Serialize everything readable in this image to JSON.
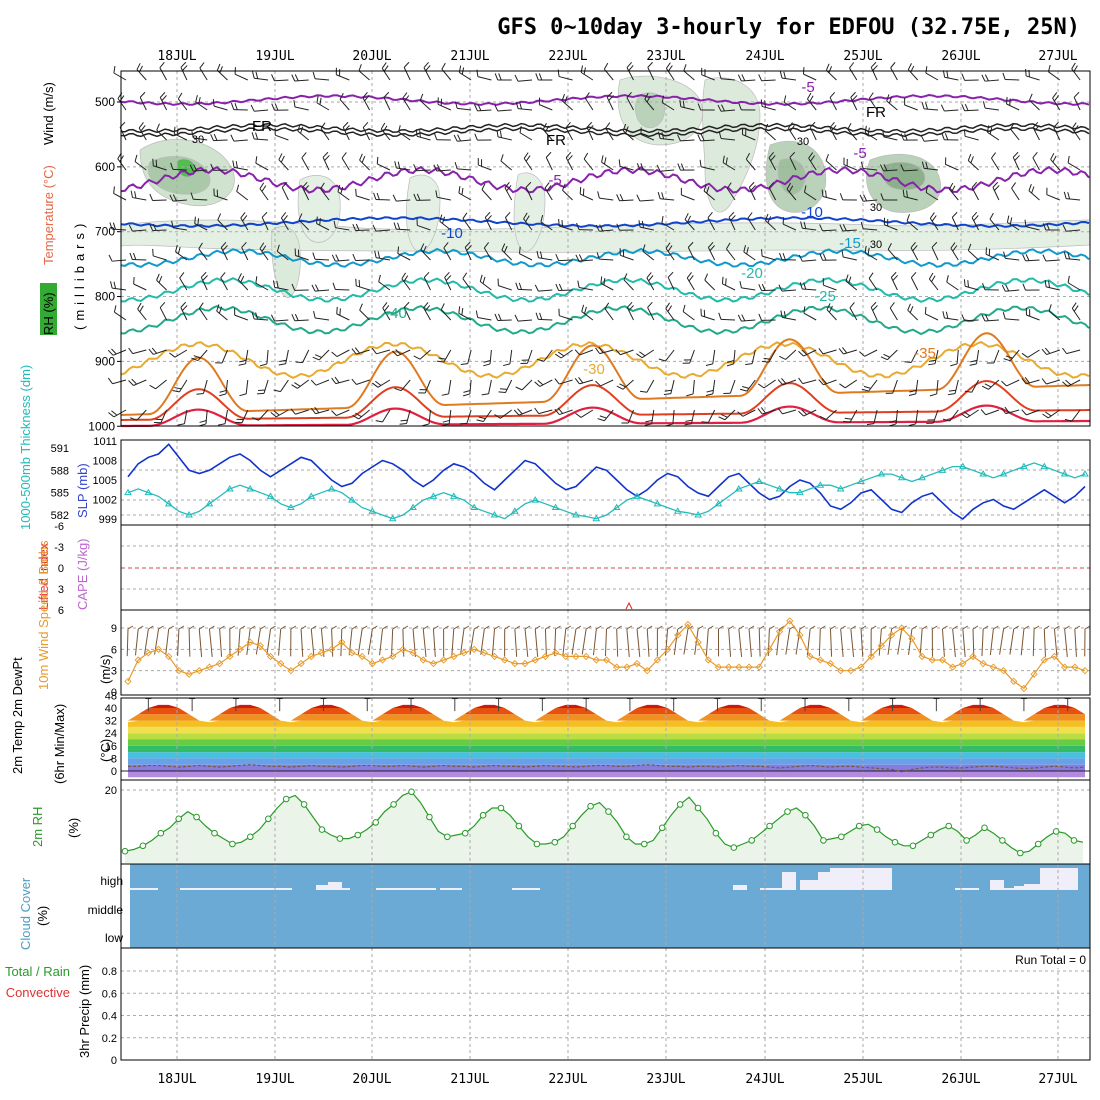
{
  "title": "GFS 0~10day 3-hourly for EDFOU (32.75E, 25N)",
  "run_total": "Run Total = 0",
  "colors": {
    "slp": "#1133cc",
    "thickness": "#22bbbb",
    "wind": "#e89a2a",
    "rh": "#2a9a2a",
    "cloud": "#6aaad4",
    "cloud_high": "#f0eef8"
  },
  "chart_data": [
    {
      "panel": "upper-air",
      "type": "line",
      "dates": [
        "18JUL",
        "19JUL",
        "20JUL",
        "21JUL",
        "22JUL",
        "23JUL",
        "24JUL",
        "25JUL",
        "26JUL",
        "27JUL"
      ],
      "ylabel_parts": [
        "RH (%)",
        "Temperature (°C)",
        "Wind (m/s)",
        "(millibars)"
      ],
      "yticks": [
        "500",
        "600",
        "700",
        "800",
        "900",
        "1000"
      ],
      "contour_labels": [
        "-5",
        "FR",
        "FR",
        "FR",
        "-5",
        "-5",
        "-10",
        "-10",
        "-15",
        "-20",
        "-25",
        "-30",
        "-35",
        "-40",
        "30",
        "30",
        "30",
        "30"
      ]
    },
    {
      "panel": "slp-thickness",
      "type": "line",
      "ylabel_left": "1000-500mb Thickness (dm)",
      "ylabel_right": "SLP (mb)",
      "ylim_thickness": [
        581,
        592
      ],
      "ylim_slp": [
        997,
        1011
      ],
      "yticks_thickness": [
        "591",
        "588",
        "585",
        "582"
      ],
      "yticks_slp": [
        "1011",
        "1008",
        "1005",
        "1002",
        "999"
      ],
      "series": [
        {
          "name": "SLP (mb)",
          "values": [
            1005.5,
            1007.5,
            1008.5,
            1009,
            1010.5,
            1008.5,
            1006.5,
            1006,
            1006.5,
            1007.5,
            1008.5,
            1009,
            1008,
            1006.5,
            1005.5,
            1006.5,
            1007.5,
            1008.5,
            1008,
            1006.5,
            1005,
            1004,
            1004.5,
            1006,
            1007,
            1008,
            1007.5,
            1006.5,
            1005,
            1004,
            1005,
            1006.5,
            1007.5,
            1007,
            1006,
            1004.5,
            1003.5,
            1005,
            1006.5,
            1008,
            1007.5,
            1006,
            1004.5,
            1003.5,
            1004,
            1005.5,
            1007,
            1006.5,
            1005,
            1003.5,
            1002.5,
            1003.5,
            1005,
            1006,
            1005.5,
            1004,
            1003,
            1002.5,
            1004,
            1005.5,
            1006,
            1004.5,
            1003,
            1002,
            1002.5,
            1004,
            1005,
            1004.5,
            1003,
            1001,
            1000.5,
            1001.5,
            1003,
            1003.5,
            1002,
            1000.5,
            1000,
            1001.5,
            1002.5,
            1003,
            1001.5,
            1000,
            999,
            1000.5,
            1001.5,
            1002,
            1001,
            1000.5,
            1001.5,
            1002.5,
            1003.5,
            1002.5,
            1001.5,
            1002.5,
            1004
          ]
        },
        {
          "name": "1000-500mb Thickness (dm)",
          "values": [
            585,
            585.5,
            585,
            584.5,
            583.5,
            582.5,
            582,
            582.5,
            583.5,
            584.5,
            585.5,
            586,
            585.5,
            585,
            584.5,
            583.5,
            583,
            583.5,
            584.5,
            585,
            585.5,
            585,
            584,
            583,
            582.5,
            582,
            581.5,
            582,
            583,
            584,
            584.5,
            585,
            584.5,
            584,
            583,
            582.5,
            582,
            581.5,
            582.5,
            583.5,
            584,
            583.5,
            583,
            582.5,
            582,
            581.8,
            581.5,
            582,
            583,
            584,
            584.5,
            584,
            583.5,
            583,
            582.5,
            582.3,
            582,
            582.5,
            583.5,
            584.5,
            585.5,
            586,
            586.5,
            586,
            585.5,
            585,
            585,
            585.5,
            586,
            586,
            585.5,
            586,
            586.5,
            587,
            587.5,
            587.5,
            587,
            586.5,
            587,
            587.5,
            588,
            588.5,
            588.5,
            588,
            587.5,
            587,
            587.5,
            588,
            588.5,
            589,
            588.5,
            588,
            587.5,
            587,
            587.5
          ]
        }
      ]
    },
    {
      "panel": "lifted-index",
      "type": "line",
      "ylabel_left": "Lifted Index",
      "ylabel_right": "CAPE (J/kg)",
      "ylim": [
        -6,
        6
      ],
      "yticks": [
        "-6",
        "-3",
        "0",
        "3",
        "6"
      ]
    },
    {
      "panel": "10m-wind",
      "type": "line",
      "ylabel_left": "10m Wind Speed & Barbs",
      "ylabel_right": "(m/s)",
      "ylim": [
        0,
        11
      ],
      "yticks": [
        "9",
        "6",
        "3",
        "0"
      ],
      "series": [
        {
          "name": "10m Wind Speed",
          "values": [
            1.5,
            4.5,
            5.5,
            6,
            5,
            3,
            2.5,
            3,
            3.5,
            4,
            5,
            6,
            7,
            6.5,
            5,
            4,
            3,
            4,
            5,
            5.5,
            6,
            7,
            5.5,
            5,
            4,
            4.5,
            5,
            6,
            5.5,
            4.5,
            4,
            4.5,
            5,
            5.5,
            6,
            5.5,
            5,
            4.5,
            4,
            4,
            4.5,
            5,
            5.5,
            5,
            5,
            5,
            4.5,
            4.5,
            3.5,
            3.5,
            4,
            3,
            4.5,
            6,
            8,
            9.5,
            7,
            4.5,
            3.5,
            3.5,
            3.5,
            3.5,
            3.5,
            6,
            8.5,
            10,
            8,
            5,
            4.5,
            4,
            3,
            3,
            3.5,
            5,
            6.5,
            8,
            9,
            7.5,
            5,
            4.5,
            4.5,
            3.5,
            4,
            5,
            4,
            3.5,
            3,
            1.5,
            0.5,
            2.5,
            4.5,
            5,
            3.5,
            3.5,
            3
          ]
        }
      ]
    },
    {
      "panel": "2m-temp",
      "type": "area",
      "ylabel_left": "2m Temp 2m DewPt",
      "ylabel_left2": "(6hr Min/Max)",
      "ylabel_right": "(°C)",
      "ylim": [
        -4,
        48
      ],
      "yticks": [
        "48",
        "40",
        "32",
        "24",
        "16",
        "8",
        "0"
      ],
      "series": [
        {
          "name": "2m Temp",
          "values": [
            31,
            36,
            40,
            42,
            42,
            40,
            36,
            32,
            31,
            36,
            40,
            42,
            42,
            40,
            36,
            32,
            31,
            36,
            40,
            42,
            42,
            40,
            36,
            32,
            31,
            36,
            40,
            42,
            42,
            40,
            36,
            32,
            31,
            36,
            40,
            42,
            42,
            40,
            36,
            32,
            31,
            36,
            40,
            42,
            42,
            40,
            36,
            32,
            31,
            36,
            40,
            42,
            42,
            40,
            36,
            32,
            31,
            36,
            40,
            42,
            42,
            40,
            36,
            32,
            31,
            36,
            40,
            42,
            42,
            40,
            36,
            32,
            31,
            36,
            40,
            42,
            42,
            40,
            36,
            32,
            31,
            36,
            40,
            42,
            42,
            40,
            36,
            32,
            31,
            36,
            40,
            42,
            42,
            40,
            36
          ]
        },
        {
          "name": "2m DewPt",
          "values": [
            3,
            3,
            3.5,
            3.5,
            3,
            2.5,
            3,
            3.5,
            3,
            2.5,
            3,
            3.5,
            4,
            3.5,
            3,
            3,
            2.5,
            3,
            3.5,
            3,
            3,
            2.5,
            3,
            3.5,
            3.5,
            3,
            3,
            3.5,
            3,
            2.5,
            3,
            3.5,
            3,
            3,
            2.5,
            3,
            3.5,
            3,
            3,
            2.5,
            3,
            3.5,
            3,
            3,
            2.5,
            3,
            3.5,
            3.5,
            3,
            3,
            3.5,
            4,
            3.5,
            3,
            3,
            2.5,
            3,
            3,
            2.5,
            3,
            3.5,
            3,
            3,
            2.5,
            2,
            2.5,
            3,
            3.5,
            3,
            2.5,
            3,
            3,
            2.5,
            2,
            1.5,
            1,
            -0.5,
            1,
            2,
            2.5,
            2.5,
            2,
            2,
            2.5,
            3,
            3,
            2.5,
            2,
            1.5,
            2,
            2.5,
            3,
            2.5,
            2,
            2.5
          ]
        }
      ]
    },
    {
      "panel": "2m-rh",
      "type": "line",
      "ylabel_left": "2m RH",
      "ylabel_right": "(%)",
      "ylim": [
        0,
        22
      ],
      "yticks": [
        "20"
      ],
      "series": [
        {
          "name": "2m RH",
          "values": [
            3,
            3.5,
            4.5,
            6,
            8,
            9.5,
            12,
            14,
            12.5,
            10,
            8,
            6.5,
            5,
            5.5,
            7,
            9,
            12,
            15,
            17.5,
            18.5,
            16,
            12.5,
            9,
            7.5,
            6.5,
            6.5,
            7.5,
            9,
            11,
            14,
            16,
            18.5,
            19.5,
            16.5,
            12.5,
            8.5,
            7,
            7.5,
            8,
            10,
            13,
            15,
            15,
            13,
            10,
            7,
            5,
            5,
            5.5,
            7,
            10,
            13,
            15.5,
            16.5,
            14,
            11,
            7,
            5,
            5,
            6,
            9.5,
            13,
            16,
            18,
            15,
            12,
            8,
            5,
            4,
            5,
            6,
            8,
            10,
            12,
            14,
            15,
            13,
            10,
            6,
            6.5,
            7,
            8.5,
            10,
            10.5,
            9,
            7,
            5.5,
            4.5,
            4.5,
            6,
            7.5,
            9,
            10,
            8.5,
            6,
            7.5,
            9.5,
            8,
            6,
            4,
            2.5,
            3,
            5,
            7,
            8.5,
            8,
            6,
            5.5
          ]
        }
      ]
    },
    {
      "panel": "cloud-cover",
      "type": "bar",
      "ylabel_left": "Cloud Cover",
      "ylabel_right": "(%)",
      "yticks": [
        "high",
        "middle",
        "low"
      ]
    },
    {
      "panel": "precip",
      "type": "bar",
      "ylabel_left_parts": [
        "Total / Rain",
        "Convective"
      ],
      "ylabel_right": "3hr Precip (mm)",
      "ylim": [
        0,
        1
      ],
      "yticks": [
        "0.8",
        "0.6",
        "0.4",
        "0.2",
        "0"
      ]
    }
  ]
}
